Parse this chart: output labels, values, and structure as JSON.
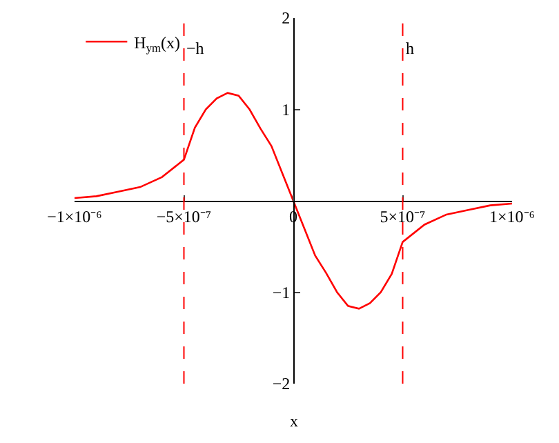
{
  "chart_data": {
    "type": "line",
    "xlabel": "x",
    "x": [
      -1e-06,
      -9e-07,
      -8e-07,
      -7e-07,
      -6e-07,
      -5e-07,
      -4.5e-07,
      -4e-07,
      -3.5e-07,
      -3e-07,
      -2.5e-07,
      -2e-07,
      -1.5e-07,
      -1e-07,
      -5e-08,
      0,
      5e-08,
      1e-07,
      1.5e-07,
      2e-07,
      2.5e-07,
      3e-07,
      3.5e-07,
      4e-07,
      4.5e-07,
      5e-07,
      6e-07,
      7e-07,
      8e-07,
      9e-07,
      1e-06
    ],
    "series": [
      {
        "name": "H$_{ym}$(x)",
        "color": "#ff0000",
        "values": [
          0.03,
          0.05,
          0.1,
          0.15,
          0.26,
          0.45,
          0.8,
          1.0,
          1.12,
          1.18,
          1.15,
          1.0,
          0.79,
          0.6,
          0.3,
          0,
          -0.3,
          -0.6,
          -0.79,
          -1.0,
          -1.15,
          -1.18,
          -1.12,
          -1.0,
          -0.8,
          -0.45,
          -0.26,
          -0.15,
          -0.1,
          -0.05,
          -0.03
        ]
      }
    ],
    "xlim": [
      -1e-06,
      1e-06
    ],
    "xticks": [
      {
        "value": -1e-06,
        "label": "−1×10⁻⁶"
      },
      {
        "value": -5e-07,
        "label": "−5×10⁻⁷"
      },
      0,
      {
        "value": 5e-07,
        "label": "5×10⁻⁷"
      },
      {
        "value": 1e-06,
        "label": "1×10⁻⁶"
      }
    ],
    "ylim": [
      -2,
      2
    ],
    "yticks": [
      -2,
      -1,
      1,
      2
    ],
    "ref_lines": [
      {
        "axis": "x",
        "value": -5e-07,
        "label": "−h",
        "color": "#ff0000",
        "line_style": "dashed"
      },
      {
        "axis": "x",
        "value": 5e-07,
        "label": "h",
        "color": "#ff0000",
        "line_style": "dashed"
      }
    ],
    "grid": false,
    "legend": "top left",
    "marker": "none",
    "line_style": "solid"
  }
}
